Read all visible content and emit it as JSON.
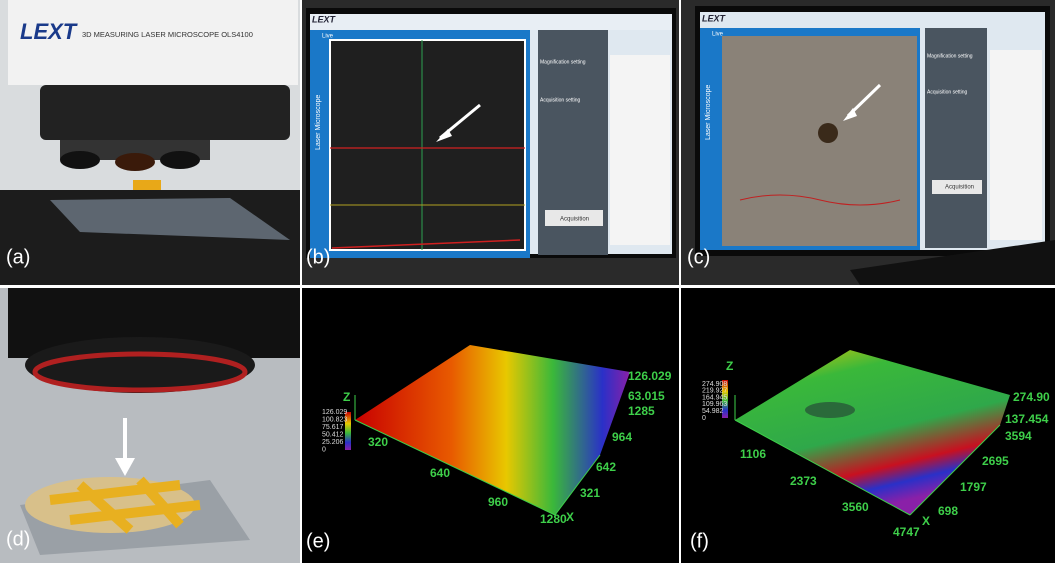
{
  "panels": [
    {
      "label": "(a)",
      "brand": "LEXT",
      "caption": "3D MEASURING LASER MICROSCOPE OLS4100"
    },
    {
      "label": "(b)",
      "brand": "LEXT",
      "screen_texts": [
        "Live",
        "Laser Microscope",
        "Magnification setting",
        "Acquisition setting",
        "Acquisition"
      ]
    },
    {
      "label": "(c)",
      "brand": "LEXT",
      "screen_texts": [
        "Live",
        "Laser Microscope",
        "Magnification setting",
        "Acquisition setting",
        "Acquisition"
      ]
    },
    {
      "label": "(d)"
    },
    {
      "label": "(e)",
      "z_axis": "Z",
      "x_axis": "X",
      "legend_ticks": [
        "126.029",
        "100.823",
        "75.617",
        "50.412",
        "25.206",
        "0"
      ],
      "z_ticks": [
        "126.029",
        "63.015"
      ],
      "y_ticks": [
        "1285",
        "964",
        "642",
        "321"
      ],
      "x_ticks": [
        "320",
        "640",
        "960",
        "1280"
      ]
    },
    {
      "label": "(f)",
      "z_axis": "Z",
      "x_axis": "X",
      "legend_ticks": [
        "274.908",
        "219.927",
        "164.945",
        "109.963",
        "54.982",
        "0"
      ],
      "z_ticks": [
        "274.90",
        "137.454"
      ],
      "y_ticks": [
        "3594",
        "2695",
        "1797",
        "698"
      ],
      "x_ticks": [
        "1106",
        "2373",
        "3560",
        "4747"
      ]
    }
  ]
}
